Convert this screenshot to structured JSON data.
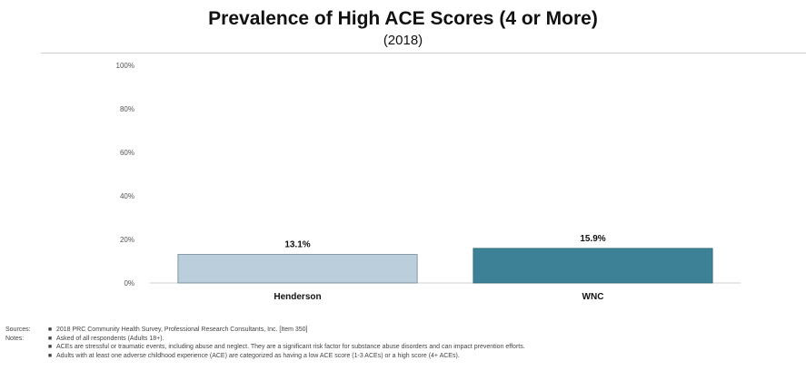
{
  "header": {
    "title": "Prevalence of High ACE Scores (4 or More)",
    "subtitle": "(2018)"
  },
  "chart_data": {
    "type": "bar",
    "title": "Prevalence of High ACE Scores (4 or More)",
    "subtitle": "(2018)",
    "categories": [
      "Henderson",
      "WNC"
    ],
    "values": [
      13.1,
      15.9
    ],
    "value_labels": [
      "13.1%",
      "15.9%"
    ],
    "colors": [
      "#bacfdb",
      "#3d8196"
    ],
    "ylim": [
      0,
      100
    ],
    "yticks": [
      "0%",
      "20%",
      "40%",
      "60%",
      "80%",
      "100%"
    ],
    "grid": false,
    "legend": "none"
  },
  "notes": {
    "sources_label": "Sources:",
    "notes_label": "Notes:",
    "source": "2018 PRC Community Health Survey, Professional Research Consultants, Inc. [Item 350]",
    "items": [
      "Asked of all respondents (Adults 18+).",
      "ACEs are stressful or traumatic events, including abuse and neglect. They are a significant risk factor for substance abuse disorders and can impact prevention efforts.",
      "Adults with at least one adverse childhood experience (ACE) are categorized as having a low ACE score (1-3 ACEs) or a high score (4+ ACEs)."
    ]
  }
}
